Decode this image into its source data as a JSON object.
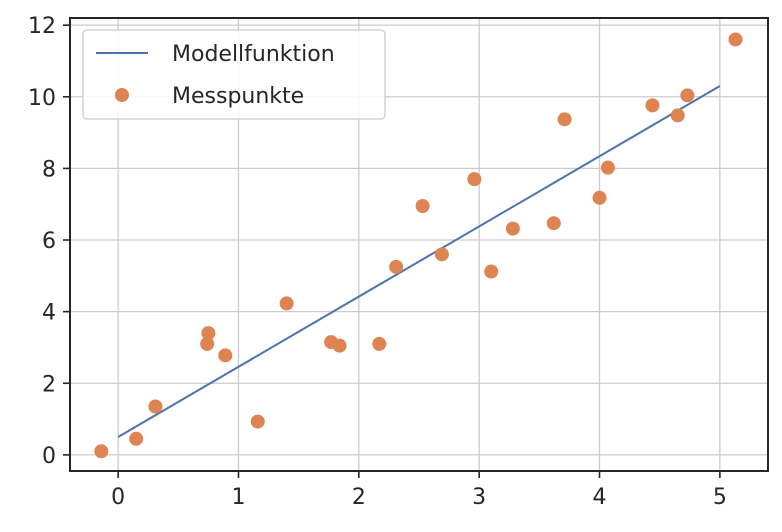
{
  "chart_data": {
    "type": "scatter",
    "xlim": [
      -0.4,
      5.4
    ],
    "ylim": [
      -0.45,
      12.2
    ],
    "xticks": [
      0,
      1,
      2,
      3,
      4,
      5
    ],
    "yticks": [
      0,
      2,
      4,
      6,
      8,
      10,
      12
    ],
    "grid": true,
    "legend_position": "top-left",
    "series": [
      {
        "name": "Modellfunktion",
        "kind": "line",
        "color": "#4c72b0",
        "x": [
          0,
          5
        ],
        "y": [
          0.5,
          10.3
        ]
      },
      {
        "name": "Messpunkte",
        "kind": "scatter",
        "color": "#dd8452",
        "x": [
          -0.14,
          0.15,
          0.31,
          0.74,
          0.75,
          0.89,
          1.16,
          1.4,
          1.77,
          1.84,
          2.17,
          2.31,
          2.53,
          2.69,
          2.96,
          3.1,
          3.28,
          3.62,
          3.71,
          4.0,
          4.07,
          4.44,
          4.65,
          4.73,
          5.13
        ],
        "y": [
          0.1,
          0.45,
          1.35,
          3.1,
          3.4,
          2.78,
          0.93,
          4.23,
          3.15,
          3.05,
          3.1,
          5.25,
          6.95,
          5.6,
          7.7,
          5.12,
          6.32,
          6.47,
          9.37,
          7.18,
          8.02,
          9.76,
          9.48,
          10.04,
          11.6
        ]
      }
    ]
  }
}
